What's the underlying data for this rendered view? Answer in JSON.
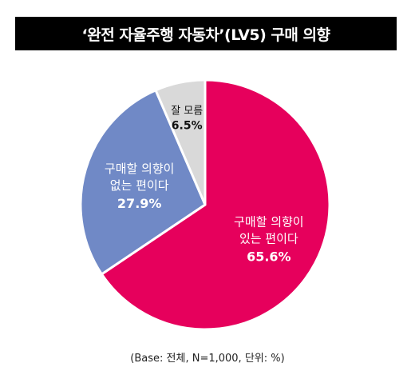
{
  "title": "‘완전 자율주행 자동차’(LV5) 구매 의향",
  "footnote": "(Base: 전체, N=1,000, 단위: %)",
  "chart_data": {
    "type": "pie",
    "title": "‘완전 자율주행 자동차’(LV5) 구매 의향",
    "unit": "%",
    "slices": [
      {
        "label_line1": "구매할 의향이",
        "label_line2": "있는 편이다",
        "value": 65.6,
        "value_text": "65.6%",
        "color": "#e6005c",
        "text_color": "#ffffff"
      },
      {
        "label_line1": "구매할 의향이",
        "label_line2": "없는 편이다",
        "value": 27.9,
        "value_text": "27.9%",
        "color": "#7089c6",
        "text_color": "#ffffff"
      },
      {
        "label_line1": "잘 모름",
        "label_line2": "",
        "value": 6.5,
        "value_text": "6.5%",
        "color": "#d9d9d9",
        "text_color": "#111111"
      }
    ]
  }
}
